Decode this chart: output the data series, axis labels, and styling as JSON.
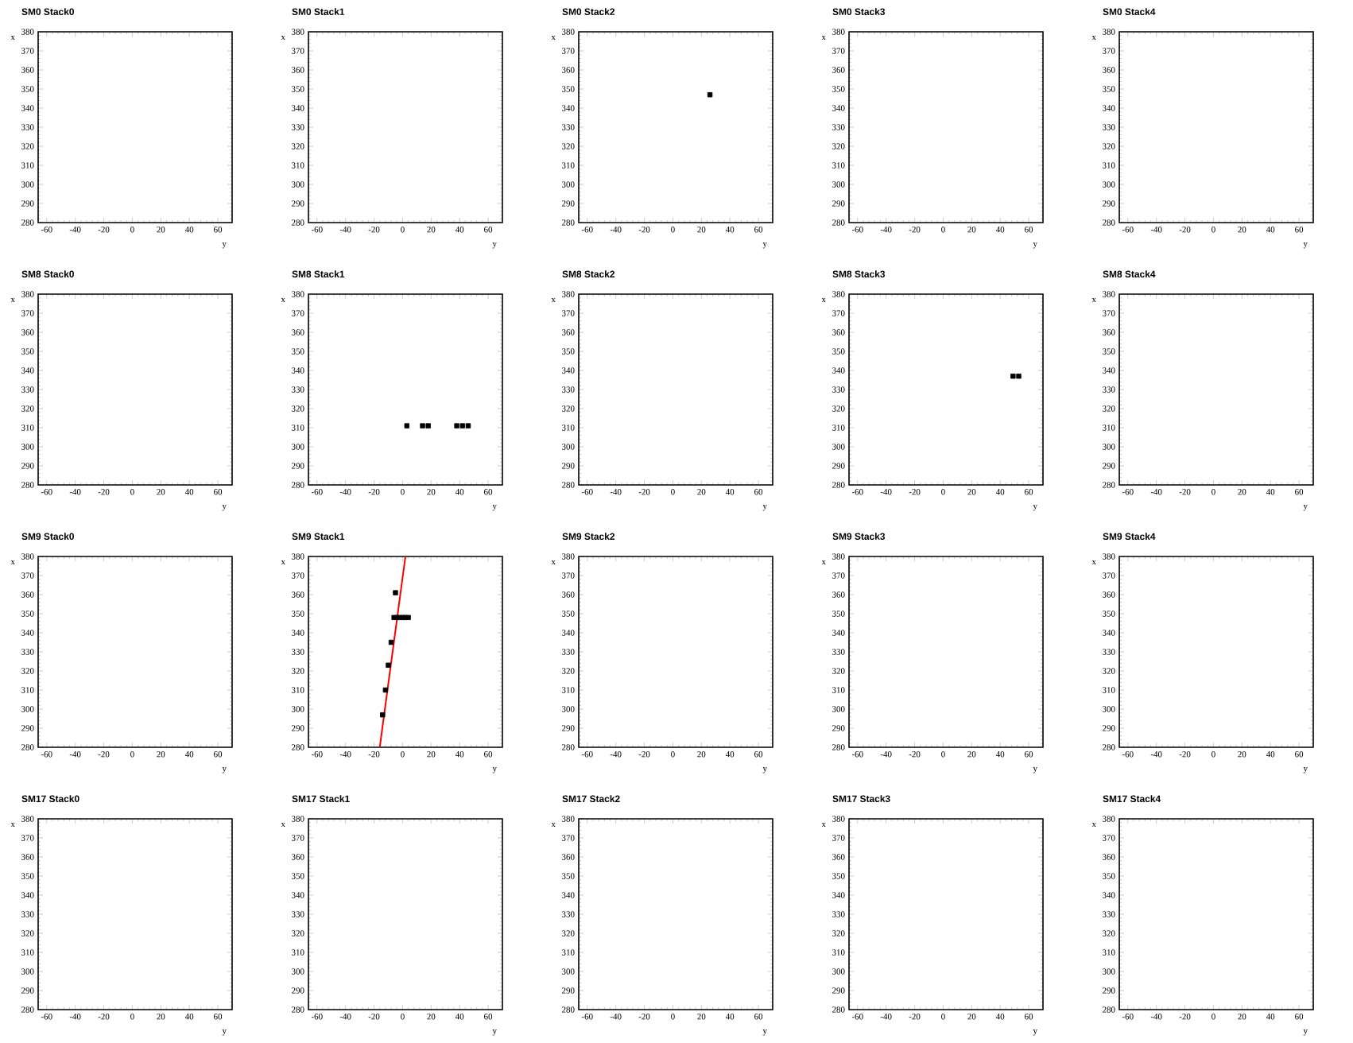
{
  "chart_data": [
    {
      "type": "scatter",
      "title": "SM0 Stack0",
      "xlabel": "y",
      "ylabel": "x",
      "xlim": [
        -66,
        70
      ],
      "ylim": [
        280,
        380
      ],
      "xticks": [
        -60,
        -40,
        -20,
        0,
        20,
        40,
        60
      ],
      "yticks": [
        280,
        290,
        300,
        310,
        320,
        330,
        340,
        350,
        360,
        370,
        380
      ]
    },
    {
      "type": "scatter",
      "title": "SM0 Stack1",
      "xlabel": "y",
      "ylabel": "x",
      "xlim": [
        -66,
        70
      ],
      "ylim": [
        280,
        380
      ],
      "xticks": [
        -60,
        -40,
        -20,
        0,
        20,
        40,
        60
      ],
      "yticks": [
        280,
        290,
        300,
        310,
        320,
        330,
        340,
        350,
        360,
        370,
        380
      ]
    },
    {
      "type": "scatter",
      "title": "SM0 Stack2",
      "xlabel": "y",
      "ylabel": "x",
      "xlim": [
        -66,
        70
      ],
      "ylim": [
        280,
        380
      ],
      "xticks": [
        -60,
        -40,
        -20,
        0,
        20,
        40,
        60
      ],
      "yticks": [
        280,
        290,
        300,
        310,
        320,
        330,
        340,
        350,
        360,
        370,
        380
      ],
      "marker": "square",
      "x": [
        26
      ],
      "values": [
        347
      ],
      "color": "#000000"
    },
    {
      "type": "scatter",
      "title": "SM0 Stack3",
      "xlabel": "y",
      "ylabel": "x",
      "xlim": [
        -66,
        70
      ],
      "ylim": [
        280,
        380
      ],
      "xticks": [
        -60,
        -40,
        -20,
        0,
        20,
        40,
        60
      ],
      "yticks": [
        280,
        290,
        300,
        310,
        320,
        330,
        340,
        350,
        360,
        370,
        380
      ]
    },
    {
      "type": "scatter",
      "title": "SM0 Stack4",
      "xlabel": "y",
      "ylabel": "x",
      "xlim": [
        -66,
        70
      ],
      "ylim": [
        280,
        380
      ],
      "xticks": [
        -60,
        -40,
        -20,
        0,
        20,
        40,
        60
      ],
      "yticks": [
        280,
        290,
        300,
        310,
        320,
        330,
        340,
        350,
        360,
        370,
        380
      ]
    },
    {
      "type": "scatter",
      "title": "SM8 Stack0",
      "xlabel": "y",
      "ylabel": "x",
      "xlim": [
        -66,
        70
      ],
      "ylim": [
        280,
        380
      ],
      "xticks": [
        -60,
        -40,
        -20,
        0,
        20,
        40,
        60
      ],
      "yticks": [
        280,
        290,
        300,
        310,
        320,
        330,
        340,
        350,
        360,
        370,
        380
      ]
    },
    {
      "type": "scatter",
      "title": "SM8 Stack1",
      "xlabel": "y",
      "ylabel": "x",
      "xlim": [
        -66,
        70
      ],
      "ylim": [
        280,
        380
      ],
      "xticks": [
        -60,
        -40,
        -20,
        0,
        20,
        40,
        60
      ],
      "yticks": [
        280,
        290,
        300,
        310,
        320,
        330,
        340,
        350,
        360,
        370,
        380
      ],
      "marker": "square",
      "x": [
        3,
        14,
        18,
        38,
        42,
        46
      ],
      "values": [
        311,
        311,
        311,
        311,
        311,
        311
      ],
      "color": "#000000"
    },
    {
      "type": "scatter",
      "title": "SM8 Stack2",
      "xlabel": "y",
      "ylabel": "x",
      "xlim": [
        -66,
        70
      ],
      "ylim": [
        280,
        380
      ],
      "xticks": [
        -60,
        -40,
        -20,
        0,
        20,
        40,
        60
      ],
      "yticks": [
        280,
        290,
        300,
        310,
        320,
        330,
        340,
        350,
        360,
        370,
        380
      ]
    },
    {
      "type": "scatter",
      "title": "SM8 Stack3",
      "xlabel": "y",
      "ylabel": "x",
      "xlim": [
        -66,
        70
      ],
      "ylim": [
        280,
        380
      ],
      "xticks": [
        -60,
        -40,
        -20,
        0,
        20,
        40,
        60
      ],
      "yticks": [
        280,
        290,
        300,
        310,
        320,
        330,
        340,
        350,
        360,
        370,
        380
      ],
      "marker": "square",
      "x": [
        49,
        53
      ],
      "values": [
        337,
        337
      ],
      "color": "#000000"
    },
    {
      "type": "scatter",
      "title": "SM8 Stack4",
      "xlabel": "y",
      "ylabel": "x",
      "xlim": [
        -66,
        70
      ],
      "ylim": [
        280,
        380
      ],
      "xticks": [
        -60,
        -40,
        -20,
        0,
        20,
        40,
        60
      ],
      "yticks": [
        280,
        290,
        300,
        310,
        320,
        330,
        340,
        350,
        360,
        370,
        380
      ]
    },
    {
      "type": "scatter",
      "title": "SM9 Stack0",
      "xlabel": "y",
      "ylabel": "x",
      "xlim": [
        -66,
        70
      ],
      "ylim": [
        280,
        380
      ],
      "xticks": [
        -60,
        -40,
        -20,
        0,
        20,
        40,
        60
      ],
      "yticks": [
        280,
        290,
        300,
        310,
        320,
        330,
        340,
        350,
        360,
        370,
        380
      ]
    },
    {
      "type": "scatter",
      "title": "SM9 Stack1",
      "xlabel": "y",
      "ylabel": "x",
      "xlim": [
        -66,
        70
      ],
      "ylim": [
        280,
        380
      ],
      "xticks": [
        -60,
        -40,
        -20,
        0,
        20,
        40,
        60
      ],
      "yticks": [
        280,
        290,
        300,
        310,
        320,
        330,
        340,
        350,
        360,
        370,
        380
      ],
      "series": [
        {
          "type": "scatter",
          "marker": "square",
          "color": "#000000",
          "x": [
            -14,
            -12,
            -10,
            -8,
            -6,
            -4,
            -2,
            0,
            2,
            4,
            -5
          ],
          "values": [
            297,
            310,
            323,
            335,
            348,
            348,
            348,
            348,
            348,
            348,
            361
          ]
        },
        {
          "type": "line",
          "marker": "none",
          "color": "#ff0000",
          "x": [
            -16,
            2
          ],
          "values": [
            280,
            380
          ]
        }
      ]
    },
    {
      "type": "scatter",
      "title": "SM9 Stack2",
      "xlabel": "y",
      "ylabel": "x",
      "xlim": [
        -66,
        70
      ],
      "ylim": [
        280,
        380
      ],
      "xticks": [
        -60,
        -40,
        -20,
        0,
        20,
        40,
        60
      ],
      "yticks": [
        280,
        290,
        300,
        310,
        320,
        330,
        340,
        350,
        360,
        370,
        380
      ]
    },
    {
      "type": "scatter",
      "title": "SM9 Stack3",
      "xlabel": "y",
      "ylabel": "x",
      "xlim": [
        -66,
        70
      ],
      "ylim": [
        280,
        380
      ],
      "xticks": [
        -60,
        -40,
        -20,
        0,
        20,
        40,
        60
      ],
      "yticks": [
        280,
        290,
        300,
        310,
        320,
        330,
        340,
        350,
        360,
        370,
        380
      ]
    },
    {
      "type": "scatter",
      "title": "SM9 Stack4",
      "xlabel": "y",
      "ylabel": "x",
      "xlim": [
        -66,
        70
      ],
      "ylim": [
        280,
        380
      ],
      "xticks": [
        -60,
        -40,
        -20,
        0,
        20,
        40,
        60
      ],
      "yticks": [
        280,
        290,
        300,
        310,
        320,
        330,
        340,
        350,
        360,
        370,
        380
      ]
    },
    {
      "type": "scatter",
      "title": "SM17 Stack0",
      "xlabel": "y",
      "ylabel": "x",
      "xlim": [
        -66,
        70
      ],
      "ylim": [
        280,
        380
      ],
      "xticks": [
        -60,
        -40,
        -20,
        0,
        20,
        40,
        60
      ],
      "yticks": [
        280,
        290,
        300,
        310,
        320,
        330,
        340,
        350,
        360,
        370,
        380
      ]
    },
    {
      "type": "scatter",
      "title": "SM17 Stack1",
      "xlabel": "y",
      "ylabel": "x",
      "xlim": [
        -66,
        70
      ],
      "ylim": [
        280,
        380
      ],
      "xticks": [
        -60,
        -40,
        -20,
        0,
        20,
        40,
        60
      ],
      "yticks": [
        280,
        290,
        300,
        310,
        320,
        330,
        340,
        350,
        360,
        370,
        380
      ]
    },
    {
      "type": "scatter",
      "title": "SM17 Stack2",
      "xlabel": "y",
      "ylabel": "x",
      "xlim": [
        -66,
        70
      ],
      "ylim": [
        280,
        380
      ],
      "xticks": [
        -60,
        -40,
        -20,
        0,
        20,
        40,
        60
      ],
      "yticks": [
        280,
        290,
        300,
        310,
        320,
        330,
        340,
        350,
        360,
        370,
        380
      ]
    },
    {
      "type": "scatter",
      "title": "SM17 Stack3",
      "xlabel": "y",
      "ylabel": "x",
      "xlim": [
        -66,
        70
      ],
      "ylim": [
        280,
        380
      ],
      "xticks": [
        -60,
        -40,
        -20,
        0,
        20,
        40,
        60
      ],
      "yticks": [
        280,
        290,
        300,
        310,
        320,
        330,
        340,
        350,
        360,
        370,
        380
      ]
    },
    {
      "type": "scatter",
      "title": "SM17 Stack4",
      "xlabel": "y",
      "ylabel": "x",
      "xlim": [
        -66,
        70
      ],
      "ylim": [
        280,
        380
      ],
      "xticks": [
        -60,
        -40,
        -20,
        0,
        20,
        40,
        60
      ],
      "yticks": [
        280,
        290,
        300,
        310,
        320,
        330,
        340,
        350,
        360,
        370,
        380
      ]
    }
  ]
}
